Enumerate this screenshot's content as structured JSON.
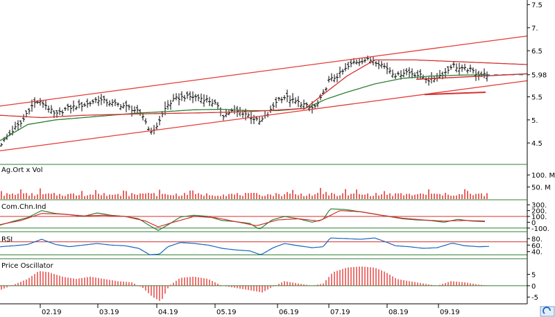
{
  "chart_data": [
    {
      "type": "ohlc",
      "panel": "price",
      "ylim": [
        4.05,
        7.6
      ],
      "yticks": [
        "7.5",
        "7.",
        "6.5",
        "5.98",
        "5.5",
        "5.",
        "4.5"
      ],
      "last_price": 5.98,
      "x_ticks": [
        "02.19",
        "03.19",
        "04.19",
        "05.19",
        "06.19",
        "07.19",
        "08.19",
        "09.19"
      ],
      "close_anchors": [
        [
          0,
          4.45
        ],
        [
          8,
          4.6
        ],
        [
          20,
          4.8
        ],
        [
          32,
          4.95
        ],
        [
          40,
          5.2
        ],
        [
          52,
          5.4
        ],
        [
          64,
          5.35
        ],
        [
          80,
          5.1
        ],
        [
          96,
          5.25
        ],
        [
          112,
          5.3
        ],
        [
          128,
          5.35
        ],
        [
          140,
          5.45
        ],
        [
          152,
          5.4
        ],
        [
          164,
          5.35
        ],
        [
          180,
          5.3
        ],
        [
          196,
          5.2
        ],
        [
          208,
          5.05
        ],
        [
          214,
          4.8
        ],
        [
          222,
          4.75
        ],
        [
          230,
          5.0
        ],
        [
          240,
          5.3
        ],
        [
          252,
          5.45
        ],
        [
          264,
          5.5
        ],
        [
          280,
          5.5
        ],
        [
          296,
          5.45
        ],
        [
          310,
          5.35
        ],
        [
          322,
          5.1
        ],
        [
          336,
          5.2
        ],
        [
          352,
          5.15
        ],
        [
          364,
          5.05
        ],
        [
          374,
          4.95
        ],
        [
          388,
          5.15
        ],
        [
          400,
          5.45
        ],
        [
          412,
          5.5
        ],
        [
          424,
          5.4
        ],
        [
          436,
          5.35
        ],
        [
          448,
          5.25
        ],
        [
          456,
          5.3
        ],
        [
          464,
          5.5
        ],
        [
          474,
          5.85
        ],
        [
          486,
          5.95
        ],
        [
          498,
          6.1
        ],
        [
          510,
          6.25
        ],
        [
          524,
          6.3
        ],
        [
          538,
          6.3
        ],
        [
          550,
          6.2
        ],
        [
          560,
          6.1
        ],
        [
          572,
          5.95
        ],
        [
          584,
          6.05
        ],
        [
          596,
          6.0
        ],
        [
          608,
          5.95
        ],
        [
          620,
          5.85
        ],
        [
          632,
          5.95
        ],
        [
          644,
          6.05
        ],
        [
          652,
          6.2
        ],
        [
          664,
          6.1
        ],
        [
          676,
          6.1
        ],
        [
          688,
          6.0
        ],
        [
          700,
          5.98
        ]
      ],
      "moving_average_anchors": [
        [
          0,
          4.55
        ],
        [
          40,
          4.9
        ],
        [
          80,
          5.0
        ],
        [
          120,
          5.05
        ],
        [
          160,
          5.1
        ],
        [
          200,
          5.15
        ],
        [
          240,
          5.18
        ],
        [
          280,
          5.22
        ],
        [
          320,
          5.23
        ],
        [
          360,
          5.2
        ],
        [
          400,
          5.2
        ],
        [
          440,
          5.25
        ],
        [
          470,
          5.45
        ],
        [
          500,
          5.6
        ],
        [
          540,
          5.78
        ],
        [
          580,
          5.9
        ],
        [
          620,
          5.95
        ],
        [
          660,
          5.97
        ],
        [
          700,
          5.98
        ]
      ],
      "red_curve_anchors": [
        [
          0,
          5.1
        ],
        [
          60,
          5.05
        ],
        [
          120,
          5.1
        ],
        [
          200,
          5.13
        ],
        [
          280,
          5.15
        ],
        [
          360,
          5.18
        ],
        [
          440,
          5.25
        ],
        [
          500,
          5.95
        ],
        [
          540,
          6.3
        ],
        [
          600,
          6.3
        ],
        [
          680,
          6.25
        ],
        [
          760,
          6.2
        ]
      ],
      "trend_channel": {
        "upper": [
          [
            0,
            5.3
          ],
          [
            760,
            6.82
          ]
        ],
        "lower": [
          [
            0,
            4.33
          ],
          [
            760,
            5.85
          ]
        ]
      },
      "extension_lines": [
        [
          [
            600,
            5.88
          ],
          [
            760,
            6.0
          ]
        ],
        [
          [
            612,
            5.55
          ],
          [
            700,
            5.6
          ]
        ]
      ]
    },
    {
      "type": "bar",
      "panel": "volume",
      "title": "Ag.Ort x Vol",
      "yticks": [
        "100. M",
        "50. M"
      ],
      "ylim": [
        0,
        135
      ],
      "notable": [
        [
          30,
          40
        ],
        [
          38,
          25
        ],
        [
          52,
          90
        ],
        [
          56,
          120
        ],
        [
          470,
          30
        ]
      ],
      "baseline": 12,
      "variation": 10
    },
    {
      "type": "line",
      "panel": "cci",
      "title": "Com.Chn.Ind",
      "yticks": [
        "300.",
        "200.",
        "100.",
        "0",
        "-100."
      ],
      "ylim": [
        -150,
        350
      ],
      "hlines": [
        100,
        -100
      ],
      "cci_anchors": [
        [
          0,
          -50
        ],
        [
          20,
          20
        ],
        [
          40,
          80
        ],
        [
          60,
          200
        ],
        [
          80,
          150
        ],
        [
          100,
          130
        ],
        [
          120,
          100
        ],
        [
          140,
          160
        ],
        [
          160,
          120
        ],
        [
          180,
          100
        ],
        [
          200,
          60
        ],
        [
          216,
          -60
        ],
        [
          228,
          -140
        ],
        [
          240,
          -60
        ],
        [
          260,
          90
        ],
        [
          280,
          120
        ],
        [
          300,
          100
        ],
        [
          320,
          30
        ],
        [
          340,
          10
        ],
        [
          360,
          -20
        ],
        [
          374,
          -120
        ],
        [
          392,
          40
        ],
        [
          410,
          100
        ],
        [
          430,
          60
        ],
        [
          450,
          0
        ],
        [
          466,
          50
        ],
        [
          476,
          230
        ],
        [
          496,
          220
        ],
        [
          520,
          180
        ],
        [
          540,
          140
        ],
        [
          560,
          100
        ],
        [
          580,
          60
        ],
        [
          600,
          40
        ],
        [
          620,
          30
        ],
        [
          640,
          0
        ],
        [
          660,
          50
        ],
        [
          680,
          20
        ],
        [
          700,
          10
        ]
      ],
      "signal_anchors": [
        [
          0,
          -40
        ],
        [
          30,
          30
        ],
        [
          60,
          150
        ],
        [
          90,
          140
        ],
        [
          120,
          110
        ],
        [
          150,
          120
        ],
        [
          180,
          100
        ],
        [
          210,
          20
        ],
        [
          228,
          -80
        ],
        [
          250,
          0
        ],
        [
          280,
          100
        ],
        [
          310,
          80
        ],
        [
          340,
          10
        ],
        [
          370,
          -60
        ],
        [
          400,
          40
        ],
        [
          430,
          60
        ],
        [
          460,
          20
        ],
        [
          490,
          200
        ],
        [
          520,
          180
        ],
        [
          550,
          120
        ],
        [
          580,
          70
        ],
        [
          610,
          40
        ],
        [
          640,
          20
        ],
        [
          670,
          30
        ],
        [
          700,
          20
        ]
      ]
    },
    {
      "type": "line",
      "panel": "rsi",
      "title": "RSI",
      "yticks": [
        "80.",
        "60.",
        "40."
      ],
      "ylim": [
        20,
        95
      ],
      "hlines": [
        70,
        30
      ],
      "rsi_anchors": [
        [
          0,
          55
        ],
        [
          20,
          58
        ],
        [
          40,
          62
        ],
        [
          60,
          78
        ],
        [
          80,
          62
        ],
        [
          100,
          55
        ],
        [
          120,
          60
        ],
        [
          140,
          65
        ],
        [
          160,
          60
        ],
        [
          180,
          58
        ],
        [
          200,
          50
        ],
        [
          216,
          30
        ],
        [
          230,
          32
        ],
        [
          242,
          55
        ],
        [
          260,
          68
        ],
        [
          280,
          65
        ],
        [
          300,
          60
        ],
        [
          320,
          50
        ],
        [
          340,
          45
        ],
        [
          360,
          42
        ],
        [
          376,
          30
        ],
        [
          394,
          52
        ],
        [
          410,
          65
        ],
        [
          430,
          58
        ],
        [
          450,
          52
        ],
        [
          466,
          55
        ],
        [
          476,
          82
        ],
        [
          500,
          80
        ],
        [
          520,
          78
        ],
        [
          540,
          82
        ],
        [
          556,
          70
        ],
        [
          570,
          58
        ],
        [
          590,
          55
        ],
        [
          610,
          50
        ],
        [
          630,
          52
        ],
        [
          652,
          66
        ],
        [
          670,
          58
        ],
        [
          690,
          55
        ],
        [
          705,
          56
        ]
      ]
    },
    {
      "type": "bar",
      "panel": "price-oscillator",
      "title": "Price Oscillator",
      "yticks": [
        "5",
        "0",
        "-5"
      ],
      "ylim": [
        -8,
        11
      ],
      "osc_anchors": [
        [
          0,
          -2
        ],
        [
          20,
          0.5
        ],
        [
          40,
          3
        ],
        [
          56,
          6.5
        ],
        [
          70,
          6
        ],
        [
          90,
          4
        ],
        [
          110,
          3
        ],
        [
          130,
          4
        ],
        [
          150,
          3
        ],
        [
          170,
          2
        ],
        [
          190,
          1.5
        ],
        [
          206,
          -1
        ],
        [
          220,
          -5
        ],
        [
          232,
          -7
        ],
        [
          244,
          0
        ],
        [
          260,
          3.5
        ],
        [
          280,
          4
        ],
        [
          300,
          3
        ],
        [
          320,
          0
        ],
        [
          340,
          -1
        ],
        [
          360,
          -2
        ],
        [
          378,
          -3
        ],
        [
          396,
          0
        ],
        [
          410,
          2
        ],
        [
          430,
          1
        ],
        [
          450,
          0
        ],
        [
          466,
          1
        ],
        [
          480,
          6
        ],
        [
          500,
          8
        ],
        [
          520,
          8.5
        ],
        [
          540,
          8
        ],
        [
          556,
          6
        ],
        [
          572,
          3
        ],
        [
          590,
          2
        ],
        [
          610,
          1
        ],
        [
          630,
          0
        ],
        [
          650,
          2
        ],
        [
          670,
          1.5
        ],
        [
          690,
          0.5
        ],
        [
          705,
          0
        ]
      ]
    }
  ]
}
